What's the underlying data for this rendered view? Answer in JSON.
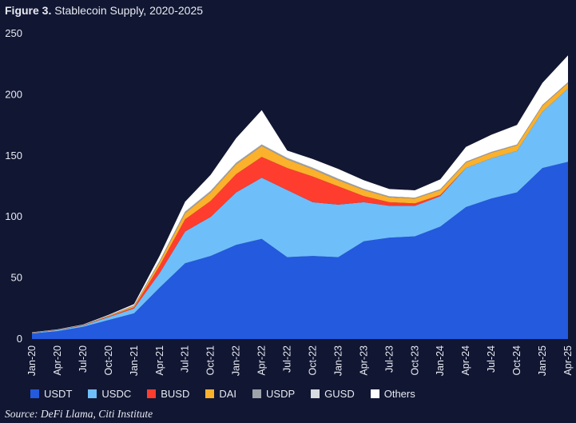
{
  "title": {
    "bold": "Figure 3.",
    "text": "Stablecoin Supply, 2020-2025"
  },
  "source": "Source: DeFi Llama, Citi Institute",
  "chart_data": {
    "type": "area",
    "stacked": true,
    "title": "Stablecoin Supply, 2020-2025",
    "xlabel": "",
    "ylabel": "",
    "ylim": [
      0,
      250
    ],
    "yticks": [
      0,
      50,
      100,
      150,
      200,
      250
    ],
    "grid": false,
    "legend_position": "bottom",
    "categories": [
      "Jan-20",
      "Apr-20",
      "Jul-20",
      "Oct-20",
      "Jan-21",
      "Apr-21",
      "Jul-21",
      "Oct-21",
      "Jan-22",
      "Apr-22",
      "Jul-22",
      "Oct-22",
      "Jan-23",
      "Apr-23",
      "Jul-23",
      "Oct-23",
      "Jan-24",
      "Apr-24",
      "Jul-24",
      "Oct-24",
      "Jan-25",
      "Apr-25"
    ],
    "series": [
      {
        "name": "USDT",
        "color": "#235ade",
        "values": [
          4.5,
          6.5,
          10,
          15.5,
          21,
          42,
          62,
          68,
          77,
          82,
          67,
          68,
          67,
          80,
          83,
          84,
          92,
          108,
          115,
          120,
          140,
          145
        ]
      },
      {
        "name": "USDC",
        "color": "#6ebefa",
        "values": [
          0.5,
          0.8,
          1,
          2.5,
          4,
          12,
          26,
          32,
          43,
          50,
          55,
          44,
          43,
          32,
          26,
          25,
          25,
          32,
          33,
          34,
          46,
          60
        ]
      },
      {
        "name": "BUSD",
        "color": "#ff3d2e",
        "values": [
          0.2,
          0.2,
          0.2,
          0.5,
          1,
          6,
          10,
          13,
          15,
          17,
          18,
          21,
          15,
          5,
          3,
          2,
          1,
          0,
          0,
          0,
          0,
          0
        ]
      },
      {
        "name": "DAI",
        "color": "#fbb12c",
        "values": [
          0.1,
          0.1,
          0.2,
          0.5,
          1,
          3,
          5,
          7,
          8,
          9,
          7,
          6,
          5,
          5,
          4,
          4,
          4,
          4.5,
          4.5,
          4.5,
          5,
          4.5
        ]
      },
      {
        "name": "USDP",
        "color": "#9ea3aa",
        "values": [
          0.1,
          0.1,
          0.1,
          0.2,
          0.4,
          0.8,
          1,
          1,
          1,
          1,
          1,
          1,
          1,
          0.8,
          0.6,
          0.5,
          0.5,
          0.5,
          0.5,
          0.5,
          0.5,
          0.5
        ]
      },
      {
        "name": "GUSD",
        "color": "#d8dbe0",
        "values": [
          0.05,
          0.05,
          0.05,
          0.1,
          0.2,
          0.3,
          0.4,
          0.4,
          0.4,
          0.3,
          0.3,
          0.3,
          0.2,
          0.2,
          0.2,
          0.2,
          0.2,
          0.2,
          0.2,
          0.2,
          0.2,
          0.2
        ]
      },
      {
        "name": "Others",
        "color": "#ffffff",
        "values": [
          0.1,
          0.2,
          0.3,
          0.5,
          1,
          4,
          8,
          13,
          20,
          28,
          6,
          7,
          8,
          7,
          6,
          6,
          8,
          12,
          14,
          16,
          18,
          22
        ]
      }
    ]
  }
}
